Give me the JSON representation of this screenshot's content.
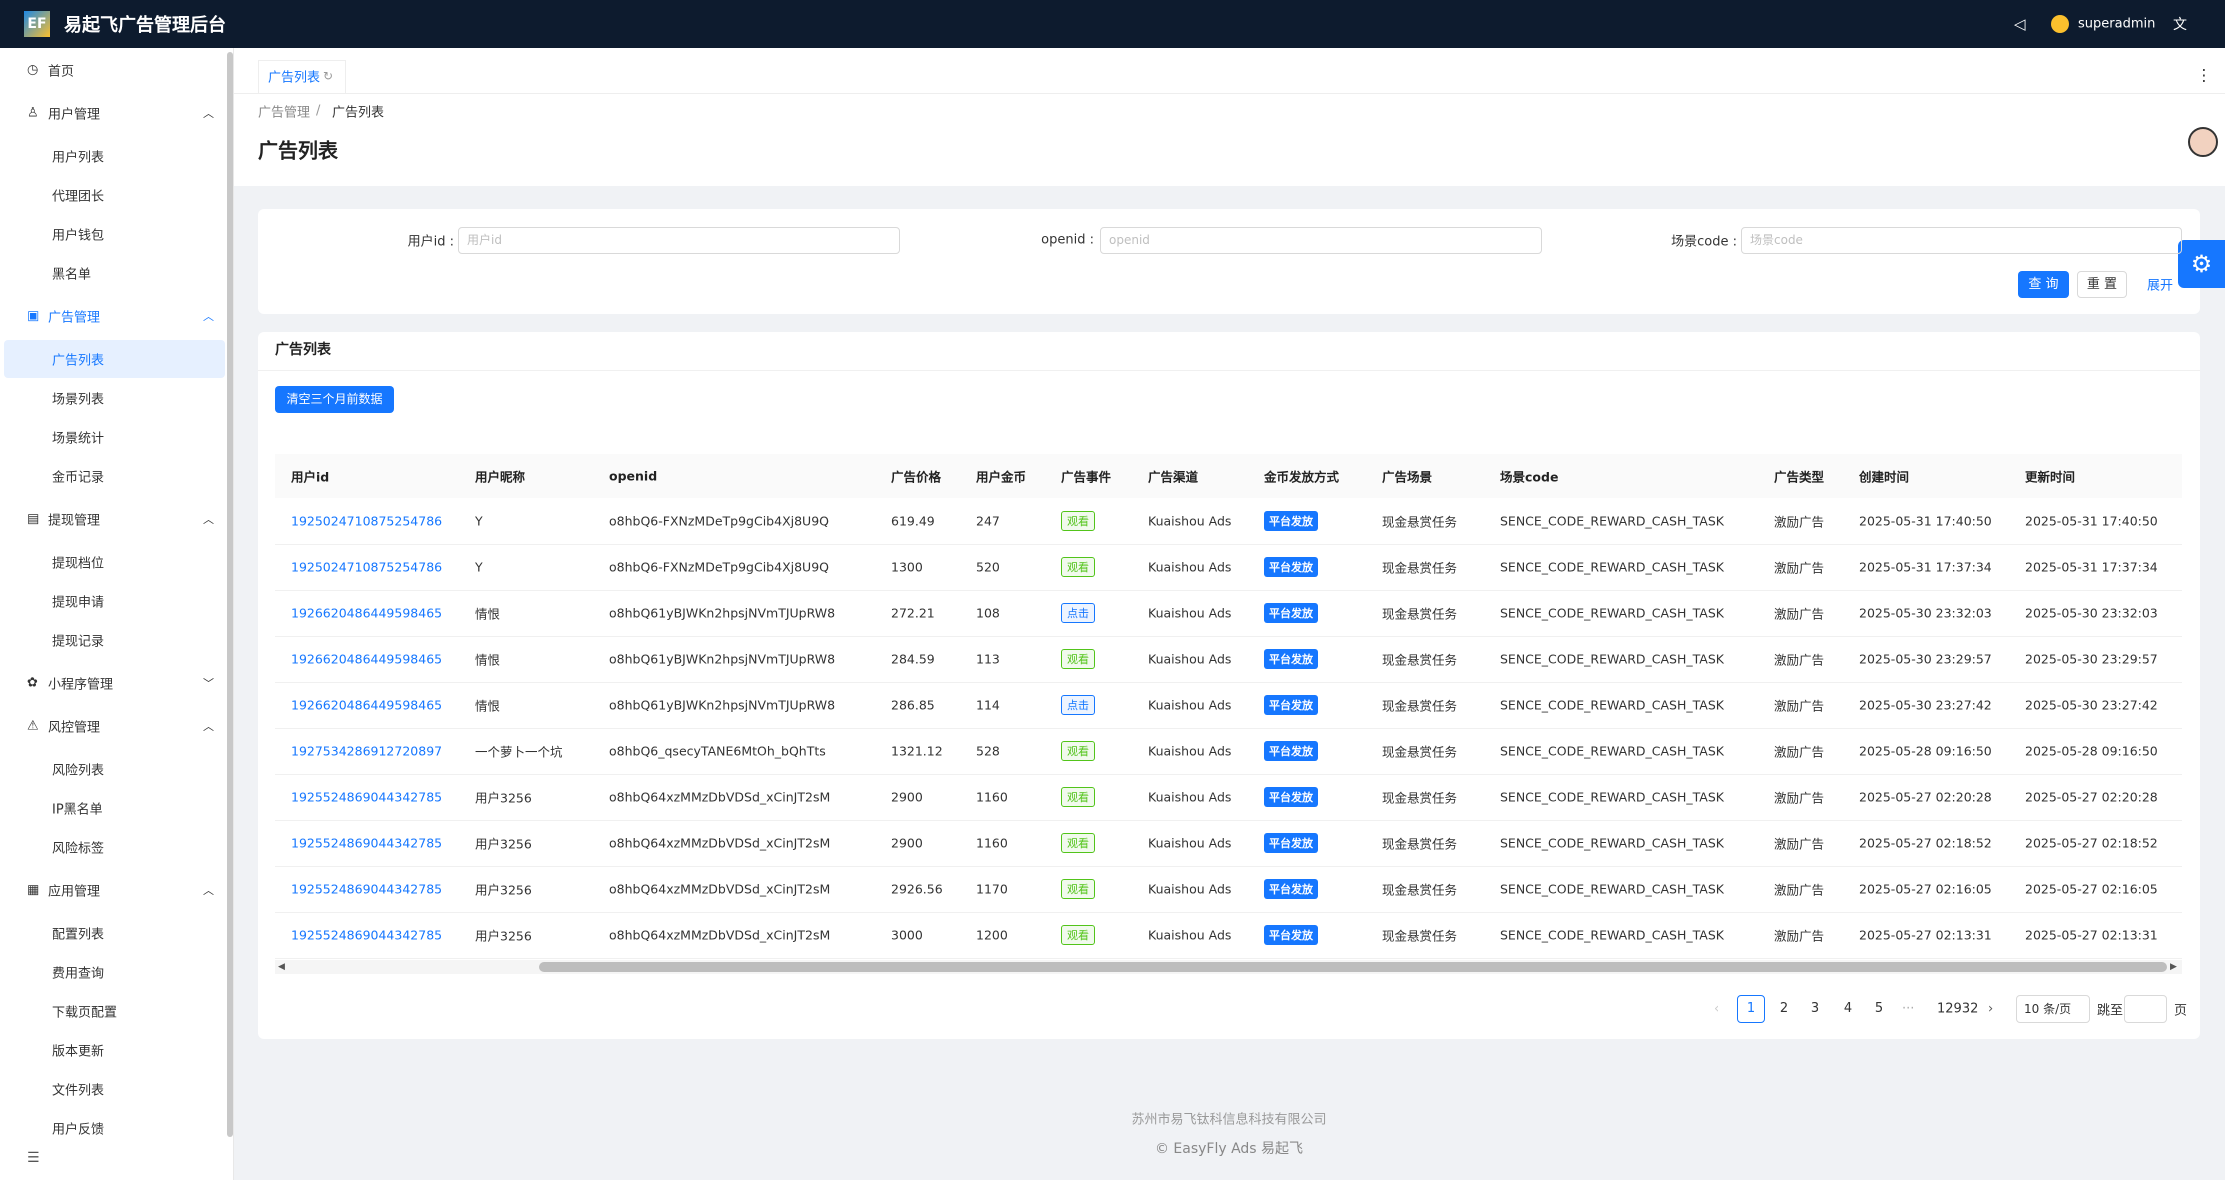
{
  "header": {
    "logo": "EF",
    "title": "易起飞广告管理后台",
    "user": "superadmin"
  },
  "menu": [
    {
      "label": "首页"
    },
    {
      "label": "用户管理",
      "children": [
        "用户列表",
        "代理团长",
        "用户钱包",
        "黑名单"
      ]
    },
    {
      "label": "广告管理",
      "children": [
        "广告列表",
        "场景列表",
        "场景统计",
        "金币记录"
      ]
    },
    {
      "label": "提现管理",
      "children": [
        "提现档位",
        "提现申请",
        "提现记录"
      ]
    },
    {
      "label": "小程序管理"
    },
    {
      "label": "风控管理",
      "children": [
        "风险列表",
        "IP黑名单",
        "风险标签"
      ]
    },
    {
      "label": "应用管理",
      "children": [
        "配置列表",
        "费用查询",
        "下载页配置",
        "版本更新",
        "文件列表",
        "用户反馈"
      ]
    }
  ],
  "tab": "广告列表",
  "breadcrumb": [
    "广告管理",
    "广告列表"
  ],
  "breadcrumb_separator": "/",
  "page_title": "广告列表",
  "search": {
    "fields": [
      {
        "label": "用户id :",
        "placeholder": "用户id"
      },
      {
        "label": "openid :",
        "placeholder": "openid"
      },
      {
        "label": "场景code :",
        "placeholder": "场景code"
      }
    ],
    "buttons": [
      "查 询",
      "重 置"
    ],
    "expand": "展开"
  },
  "table": {
    "title": "广告列表",
    "clear_button": "清空三个月前数据",
    "columns": [
      "用户id",
      "用户昵称",
      "openid",
      "广告价格",
      "用户金币",
      "广告事件",
      "广告渠道",
      "金币发放方式",
      "广告场景",
      "场景code",
      "广告类型",
      "创建时间",
      "更新时间"
    ],
    "rows": [
      [
        "1925024710875254786",
        "Y",
        "o8hbQ6-FXNzMDeTp9gCib4Xj8U9Q",
        "619.49",
        "247",
        "观看",
        "Kuaishou Ads",
        "平台发放",
        "现金悬赏任务",
        "SENCE_CODE_REWARD_CASH_TASK",
        "激励广告",
        "2025-05-31 17:40:50",
        "2025-05-31 17:40:50"
      ],
      [
        "1925024710875254786",
        "Y",
        "o8hbQ6-FXNzMDeTp9gCib4Xj8U9Q",
        "1300",
        "520",
        "观看",
        "Kuaishou Ads",
        "平台发放",
        "现金悬赏任务",
        "SENCE_CODE_REWARD_CASH_TASK",
        "激励广告",
        "2025-05-31 17:37:34",
        "2025-05-31 17:37:34"
      ],
      [
        "1926620486449598465",
        "情恨",
        "o8hbQ61yBJWKn2hpsjNVmTJUpRW8",
        "272.21",
        "108",
        "点击",
        "Kuaishou Ads",
        "平台发放",
        "现金悬赏任务",
        "SENCE_CODE_REWARD_CASH_TASK",
        "激励广告",
        "2025-05-30 23:32:03",
        "2025-05-30 23:32:03"
      ],
      [
        "1926620486449598465",
        "情恨",
        "o8hbQ61yBJWKn2hpsjNVmTJUpRW8",
        "284.59",
        "113",
        "观看",
        "Kuaishou Ads",
        "平台发放",
        "现金悬赏任务",
        "SENCE_CODE_REWARD_CASH_TASK",
        "激励广告",
        "2025-05-30 23:29:57",
        "2025-05-30 23:29:57"
      ],
      [
        "1926620486449598465",
        "情恨",
        "o8hbQ61yBJWKn2hpsjNVmTJUpRW8",
        "286.85",
        "114",
        "点击",
        "Kuaishou Ads",
        "平台发放",
        "现金悬赏任务",
        "SENCE_CODE_REWARD_CASH_TASK",
        "激励广告",
        "2025-05-30 23:27:42",
        "2025-05-30 23:27:42"
      ],
      [
        "1927534286912720897",
        "一个萝卜一个坑",
        "o8hbQ6_qsecyTANE6MtOh_bQhTts",
        "1321.12",
        "528",
        "观看",
        "Kuaishou Ads",
        "平台发放",
        "现金悬赏任务",
        "SENCE_CODE_REWARD_CASH_TASK",
        "激励广告",
        "2025-05-28 09:16:50",
        "2025-05-28 09:16:50"
      ],
      [
        "1925524869044342785",
        "用户3256",
        "o8hbQ64xzMMzDbVDSd_xCinJT2sM",
        "2900",
        "1160",
        "观看",
        "Kuaishou Ads",
        "平台发放",
        "现金悬赏任务",
        "SENCE_CODE_REWARD_CASH_TASK",
        "激励广告",
        "2025-05-27 02:20:28",
        "2025-05-27 02:20:28"
      ],
      [
        "1925524869044342785",
        "用户3256",
        "o8hbQ64xzMMzDbVDSd_xCinJT2sM",
        "2900",
        "1160",
        "观看",
        "Kuaishou Ads",
        "平台发放",
        "现金悬赏任务",
        "SENCE_CODE_REWARD_CASH_TASK",
        "激励广告",
        "2025-05-27 02:18:52",
        "2025-05-27 02:18:52"
      ],
      [
        "1925524869044342785",
        "用户3256",
        "o8hbQ64xzMMzDbVDSd_xCinJT2sM",
        "2926.56",
        "1170",
        "观看",
        "Kuaishou Ads",
        "平台发放",
        "现金悬赏任务",
        "SENCE_CODE_REWARD_CASH_TASK",
        "激励广告",
        "2025-05-27 02:16:05",
        "2025-05-27 02:16:05"
      ],
      [
        "1925524869044342785",
        "用户3256",
        "o8hbQ64xzMMzDbVDSd_xCinJT2sM",
        "3000",
        "1200",
        "观看",
        "Kuaishou Ads",
        "平台发放",
        "现金悬赏任务",
        "SENCE_CODE_REWARD_CASH_TASK",
        "激励广告",
        "2025-05-27 02:13:31",
        "2025-05-27 02:13:31"
      ]
    ],
    "tag_colors": {
      "观看": "#52c41a",
      "点击": "#1677ff"
    }
  },
  "pagination": {
    "pages": [
      "1",
      "2",
      "3",
      "4",
      "5"
    ],
    "ellipsis": "···",
    "last": "12932",
    "page_size": "10 条/页",
    "jump": "跳至",
    "page_unit": "页"
  },
  "footer": {
    "company": "苏州市易飞钛科信息科技有限公司",
    "copyright": "© EasyFly Ads 易起飞"
  }
}
